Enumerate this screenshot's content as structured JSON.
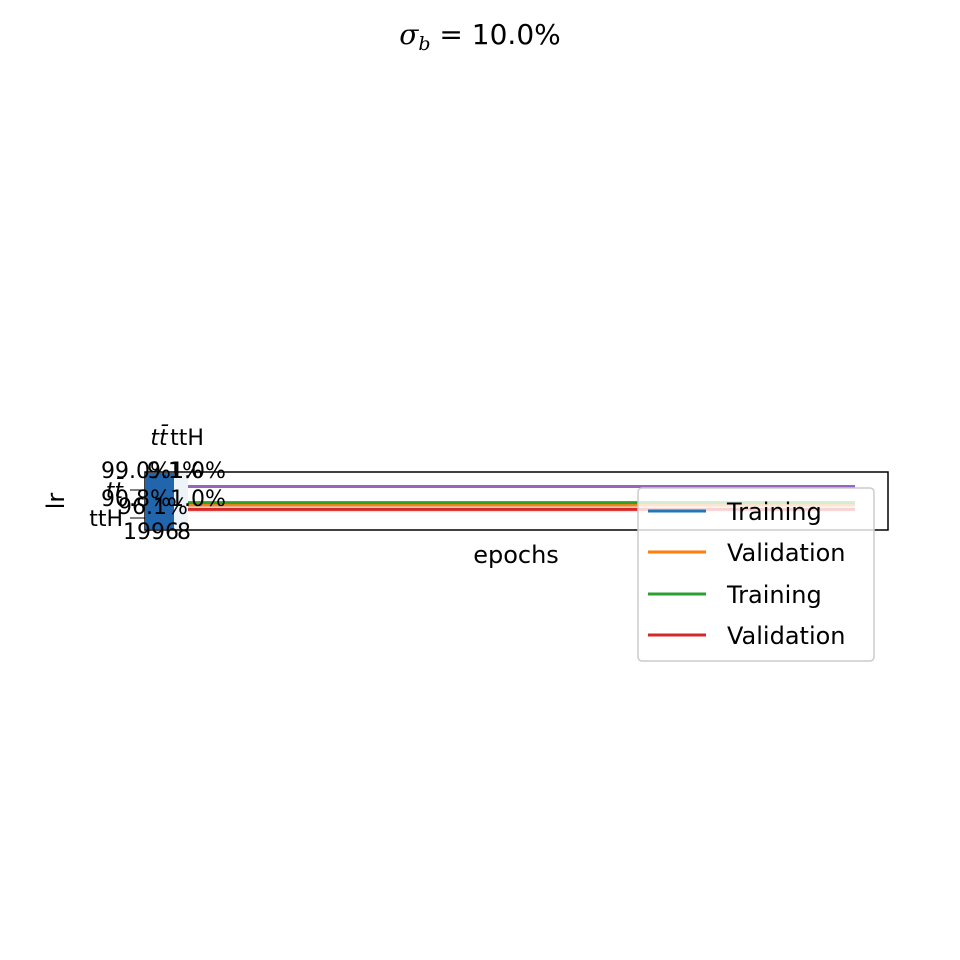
{
  "title": {
    "sigma": "σ",
    "sub": "b",
    "rest": " = 10.0%"
  },
  "chart_data": {
    "type": "line",
    "title": "σ_b = 10.0%",
    "xlabel": "epochs",
    "ylabel": "lr",
    "grid": false,
    "legend_placement": "lower right",
    "colors": {
      "training_1": "#1f77b4",
      "validation_1": "#ff7f0e",
      "training_2": "#2ca02c",
      "validation_2": "#d62728",
      "extra": "#9467bd",
      "inset_fill": "#2166ac",
      "inset_pale": "#fbd9cf"
    },
    "x": [
      0,
      1
    ],
    "ylim": [
      0,
      1
    ],
    "series": [
      {
        "name": "Training",
        "color": "#1f77b4",
        "values": [
          0.43,
          0.43
        ]
      },
      {
        "name": "Validation",
        "color": "#ff7f0e",
        "values": [
          0.43,
          0.43
        ]
      },
      {
        "name": "Training",
        "color": "#2ca02c",
        "values": [
          0.47,
          0.47
        ]
      },
      {
        "name": "Validation",
        "color": "#d62728",
        "values": [
          0.35,
          0.35
        ]
      },
      {
        "color": "#9467bd",
        "values": [
          0.76,
          0.76
        ]
      }
    ],
    "overlay_labels": {
      "col_ttbar": "tt̄",
      "col_ttH": "ttH",
      "row_ttbar": "tt̄",
      "row_ttH": "ttH",
      "cell_a": "99.0%",
      "cell_b": "9.1%",
      "cell_c": "1.0%",
      "cell_d": "90.8%",
      "cell_e": "1.0%",
      "cell_f": "96.1%",
      "num_a": "1996",
      "num_b": "8"
    }
  }
}
